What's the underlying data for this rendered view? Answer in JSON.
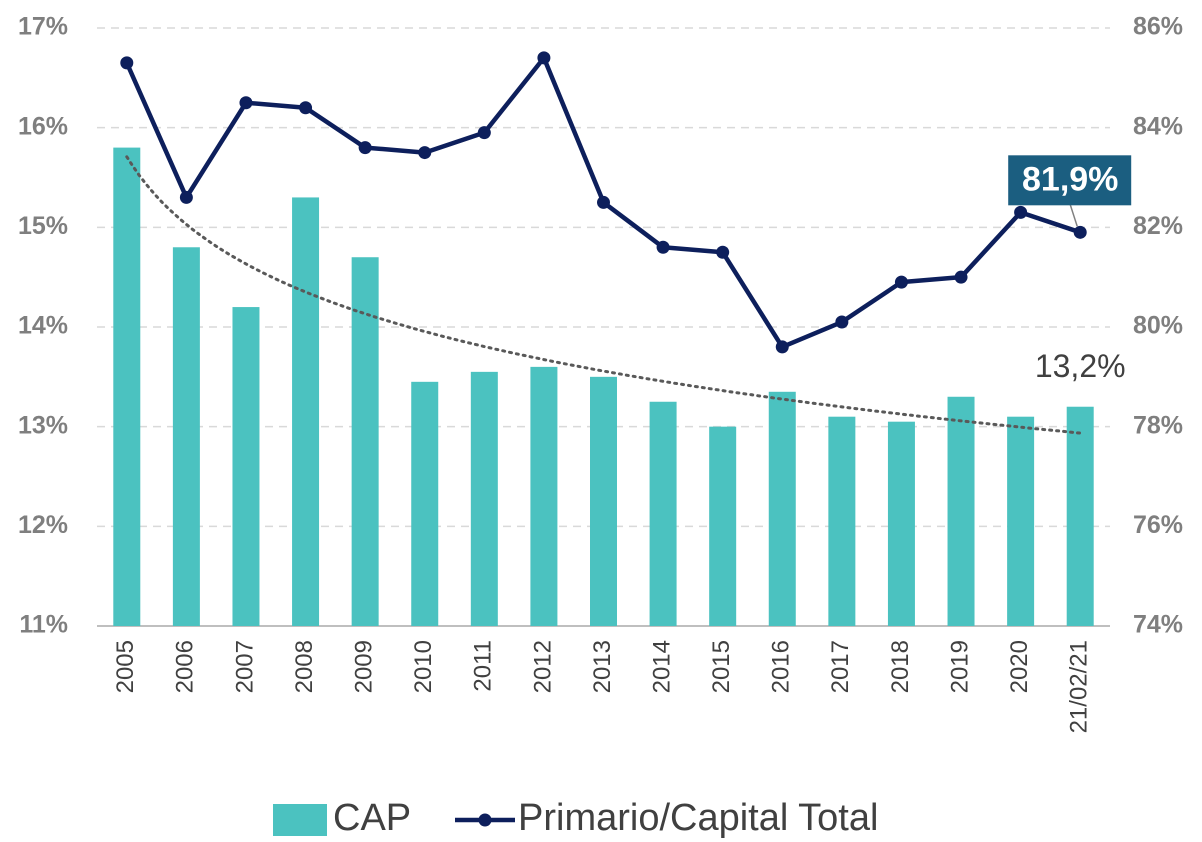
{
  "chart_data": {
    "type": "bar-line",
    "categories": [
      "2005",
      "2006",
      "2007",
      "2008",
      "2009",
      "2010",
      "2011",
      "2012",
      "2013",
      "2014",
      "2015",
      "2016",
      "2017",
      "2018",
      "2019",
      "2020",
      "21/02/21"
    ],
    "series": [
      {
        "name": "CAP",
        "type": "bar",
        "axis": "y",
        "color": "#4bc2c0",
        "values": [
          15.8,
          14.8,
          14.2,
          15.3,
          14.7,
          13.45,
          13.55,
          13.6,
          13.5,
          13.25,
          13.0,
          13.35,
          13.1,
          13.05,
          13.3,
          13.1,
          13.2
        ],
        "value_labels": [
          null,
          null,
          null,
          null,
          null,
          null,
          null,
          null,
          null,
          null,
          null,
          null,
          null,
          null,
          null,
          null,
          "13,2%"
        ]
      },
      {
        "name": "Primario/Capital Total",
        "type": "line",
        "axis": "y2",
        "color": "#0d1f5c",
        "values": [
          85.3,
          82.6,
          84.5,
          84.4,
          83.6,
          83.5,
          83.9,
          85.4,
          82.5,
          81.6,
          81.5,
          79.6,
          80.1,
          80.9,
          81.0,
          82.3,
          81.9
        ],
        "value_labels": [
          null,
          null,
          null,
          null,
          null,
          null,
          null,
          null,
          null,
          null,
          null,
          null,
          null,
          null,
          null,
          null,
          "81,9%"
        ]
      }
    ],
    "trendline": {
      "series": 0,
      "kind": "logarithmic",
      "color": "#595959"
    },
    "ylim": [
      11,
      17
    ],
    "yticks": [
      {
        "value": 11,
        "label": "11%"
      },
      {
        "value": 12,
        "label": "12%"
      },
      {
        "value": 13,
        "label": "13%"
      },
      {
        "value": 14,
        "label": "14%"
      },
      {
        "value": 15,
        "label": "15%"
      },
      {
        "value": 16,
        "label": "16%"
      },
      {
        "value": 17,
        "label": "17%"
      }
    ],
    "y2lim": [
      74,
      86
    ],
    "y2ticks": [
      {
        "value": 74,
        "label": "74%"
      },
      {
        "value": 76,
        "label": "76%"
      },
      {
        "value": 78,
        "label": "78%"
      },
      {
        "value": 80,
        "label": "80%"
      },
      {
        "value": 82,
        "label": "82%"
      },
      {
        "value": 84,
        "label": "84%"
      },
      {
        "value": 86,
        "label": "86%"
      }
    ],
    "grid": true,
    "legend": "bottom"
  }
}
